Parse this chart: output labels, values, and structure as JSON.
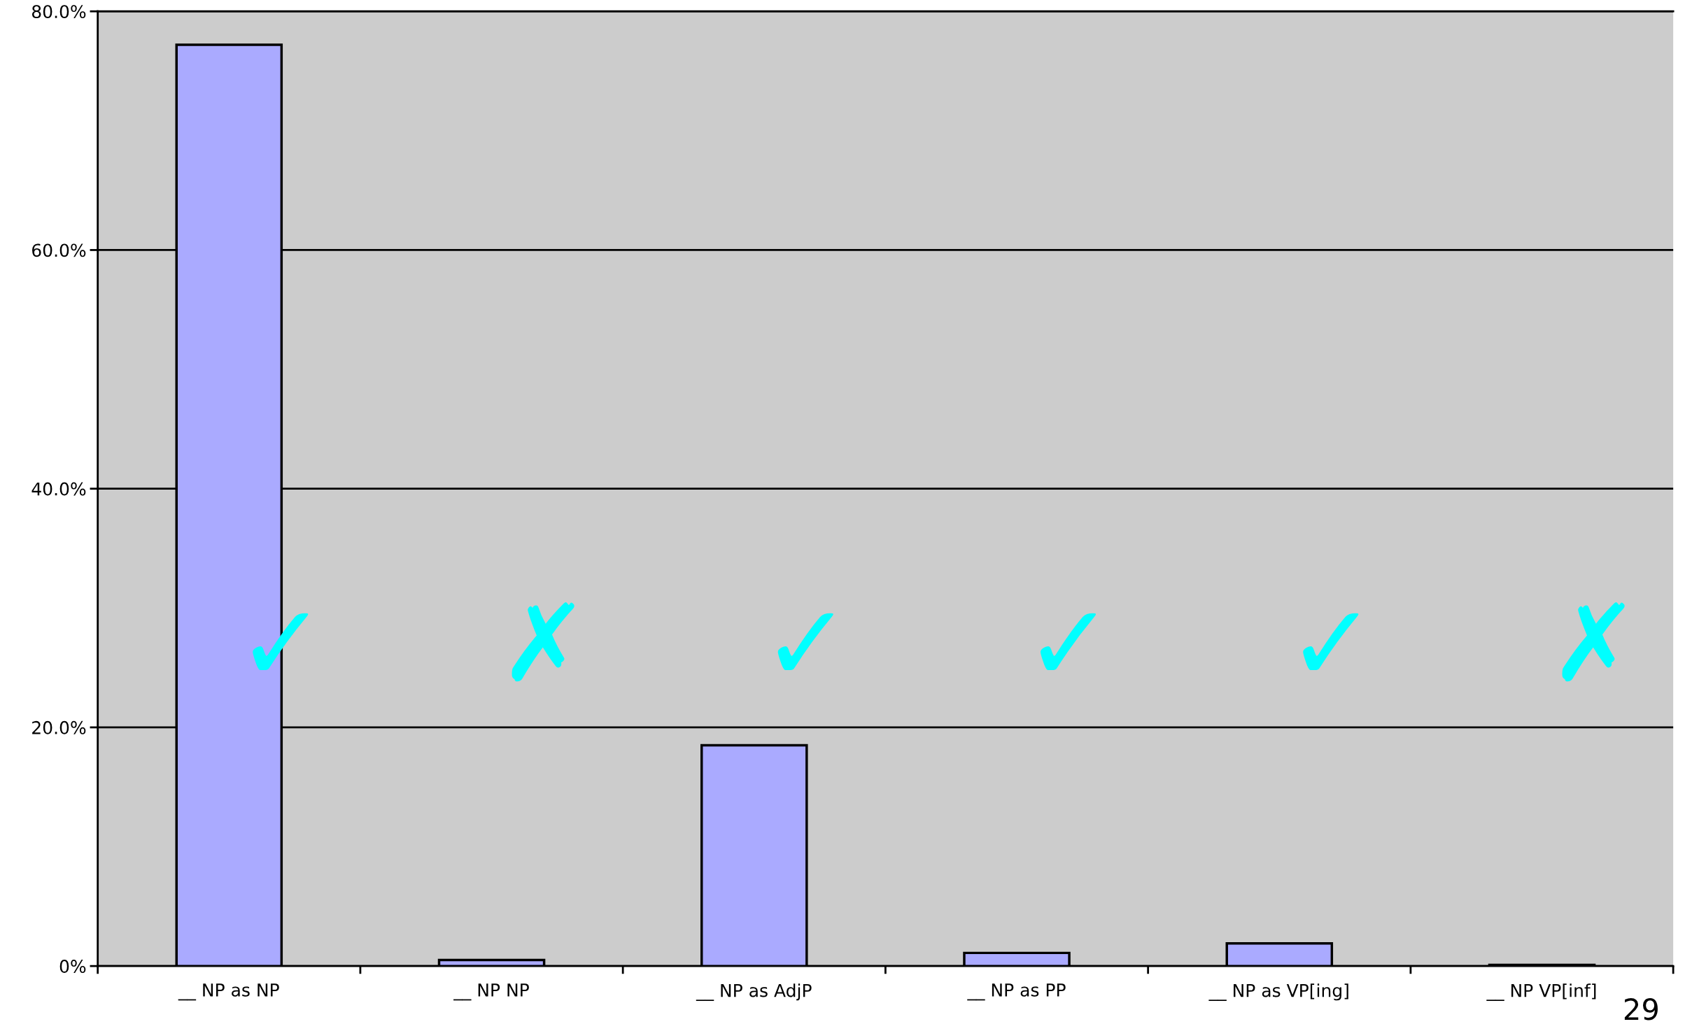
{
  "chart_data": {
    "type": "bar",
    "categories": [
      "__ NP as NP",
      "__ NP NP",
      "__ NP as AdjP",
      "__ NP as PP",
      "__ NP as VP[ing]",
      "__ NP VP[inf]"
    ],
    "values": [
      77.2,
      0.5,
      18.5,
      1.1,
      1.9,
      0.1
    ],
    "color": "#aaaaff",
    "ylim": [
      0,
      80
    ],
    "yticks": [
      {
        "value": 0,
        "label": "0%"
      },
      {
        "value": 20,
        "label": "20.0%"
      },
      {
        "value": 40,
        "label": "40.0%"
      },
      {
        "value": 60,
        "label": "60.0%"
      },
      {
        "value": 80,
        "label": "80.0%"
      }
    ],
    "grid": "y",
    "annotations": [
      "✓",
      "✗",
      "✓",
      "✓",
      "✓",
      "✗",
      "29"
    ]
  }
}
